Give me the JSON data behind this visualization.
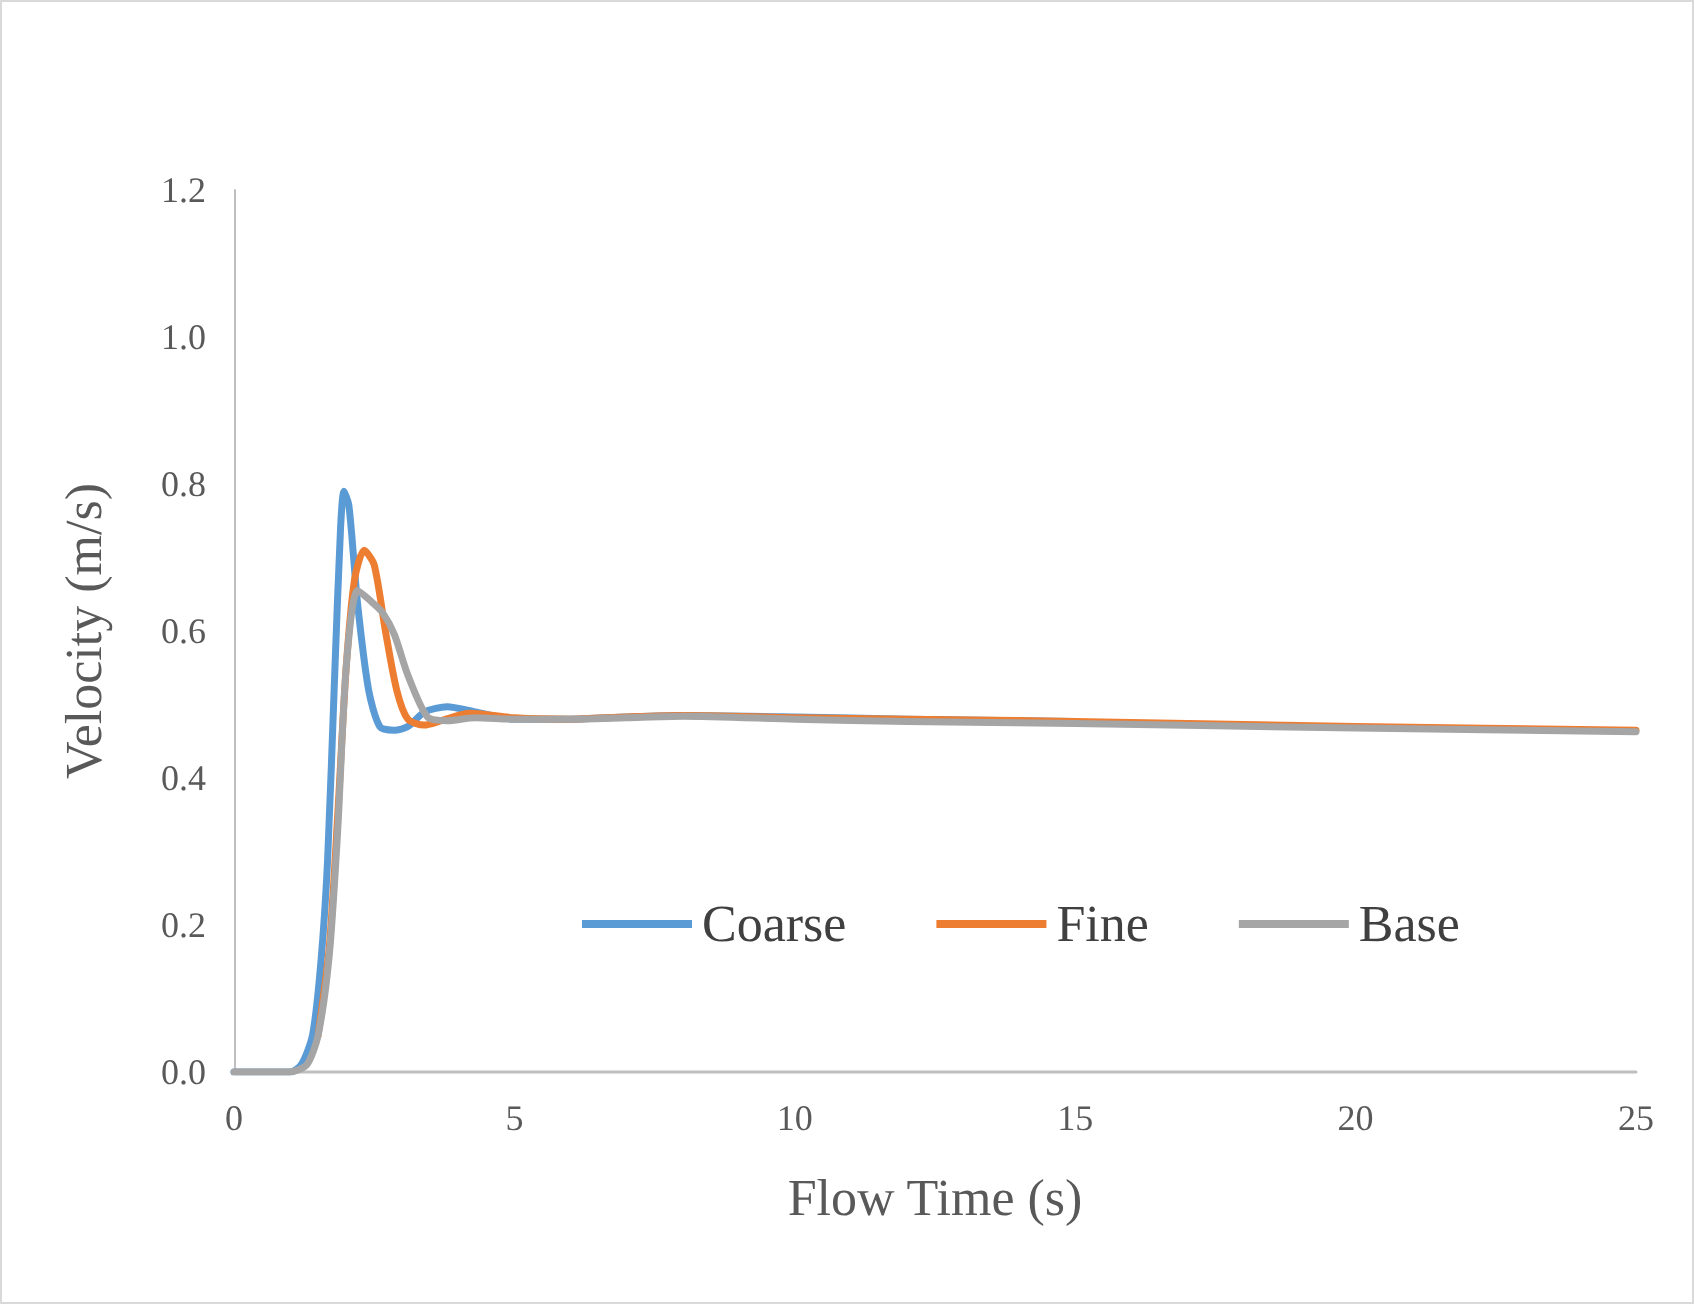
{
  "chart_data": {
    "type": "line",
    "xlabel": "Flow Time (s)",
    "ylabel": "Velocity (m/s)",
    "xlim": [
      0,
      25
    ],
    "xticks": [
      0,
      5,
      10,
      15,
      20,
      25
    ],
    "ylim": [
      0,
      1.2
    ],
    "yticks": [
      {
        "value": 0,
        "label": "0.0"
      },
      {
        "value": 0.2,
        "label": "0.2"
      },
      {
        "value": 0.4,
        "label": "0.4"
      },
      {
        "value": 0.6,
        "label": "0.6"
      },
      {
        "value": 0.8,
        "label": "0.8"
      },
      {
        "value": 1.0,
        "label": "1.0"
      },
      {
        "value": 1.2,
        "label": "1.2"
      }
    ],
    "grid": false,
    "legend": "bottom right",
    "marker": "none",
    "line_style": "solid",
    "series": [
      {
        "name": "Coarse",
        "color": "#5b9bd5",
        "x": [
          0,
          1,
          1.2,
          1.4,
          1.55,
          1.67,
          1.8,
          1.9,
          1.96,
          2.05,
          2.2,
          2.4,
          2.6,
          2.86,
          3.1,
          3.4,
          3.8,
          4.3,
          5,
          6,
          7,
          8,
          10,
          12,
          15
        ],
        "values": [
          0,
          0,
          0.01,
          0.05,
          0.15,
          0.29,
          0.55,
          0.74,
          0.79,
          0.77,
          0.64,
          0.52,
          0.47,
          0.465,
          0.47,
          0.49,
          0.497,
          0.49,
          0.48,
          0.48,
          0.483,
          0.485,
          0.483,
          0.48,
          0.477
        ]
      },
      {
        "name": "Fine",
        "color": "#ed7d31",
        "x": [
          1.5,
          1.7,
          1.85,
          2.0,
          2.15,
          2.32,
          2.5,
          2.7,
          2.9,
          3.1,
          3.39,
          3.7,
          4.2,
          5,
          6,
          7,
          8,
          10,
          12,
          15,
          20,
          25
        ],
        "values": [
          0.05,
          0.17,
          0.35,
          0.55,
          0.67,
          0.71,
          0.69,
          0.6,
          0.52,
          0.48,
          0.472,
          0.478,
          0.488,
          0.482,
          0.48,
          0.483,
          0.485,
          0.482,
          0.48,
          0.477,
          0.47,
          0.465
        ]
      },
      {
        "name": "Base",
        "color": "#a5a5a5",
        "x": [
          0,
          1,
          1.3,
          1.5,
          1.7,
          1.85,
          2.0,
          2.2,
          2.45,
          2.65,
          2.86,
          3.1,
          3.45,
          3.8,
          4.3,
          5,
          6,
          7,
          8,
          10,
          12,
          15,
          20,
          25
        ],
        "values": [
          0,
          0,
          0.01,
          0.05,
          0.16,
          0.33,
          0.55,
          0.655,
          0.64,
          0.625,
          0.595,
          0.54,
          0.483,
          0.478,
          0.482,
          0.48,
          0.48,
          0.482,
          0.484,
          0.48,
          0.477,
          0.474,
          0.468,
          0.463
        ]
      }
    ]
  }
}
